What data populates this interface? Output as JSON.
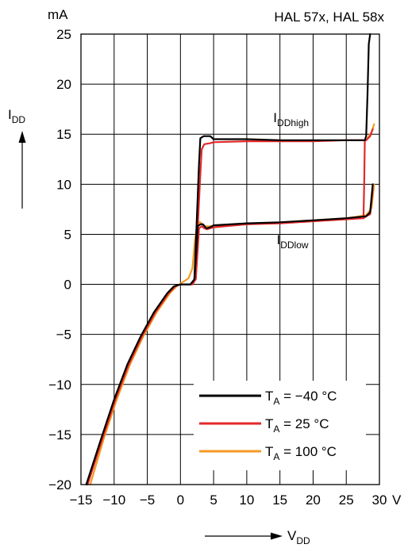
{
  "chart_data": {
    "type": "line",
    "title": "HAL 57x, HAL 58x",
    "xlabel": "V",
    "xlabel_sub": "DD",
    "ylabel": "I",
    "ylabel_sub": "DD",
    "x_unit": "V",
    "y_unit": "mA",
    "xlim": [
      -15,
      30
    ],
    "ylim": [
      -20,
      25
    ],
    "x_ticks": [
      -15,
      -10,
      -5,
      0,
      5,
      10,
      15,
      20,
      25,
      30
    ],
    "x_tick_labels": [
      "−15",
      "−10",
      "−5",
      "0",
      "5",
      "10",
      "15",
      "20",
      "25",
      "30"
    ],
    "y_ticks": [
      -20,
      -15,
      -10,
      -5,
      0,
      5,
      10,
      15,
      20,
      25
    ],
    "y_tick_labels": [
      "−20",
      "−15",
      "−10",
      "−5",
      "0",
      "5",
      "10",
      "15",
      "20",
      "25"
    ],
    "grid": true,
    "legend_position": "bottom-right",
    "annotations": [
      {
        "main": "I",
        "sub": "DDhigh",
        "x": 14,
        "y": 16.2
      },
      {
        "main": "I",
        "sub": "DDlow",
        "x": 14.5,
        "y": 4.0
      }
    ],
    "series": [
      {
        "name_main": "T",
        "name_sub": "A",
        "name_rest": " = −40 °C",
        "color": "#000000",
        "segments": [
          [
            [
              -14.2,
              -20
            ],
            [
              -12,
              -15.5
            ],
            [
              -10,
              -11.5
            ],
            [
              -8,
              -8
            ],
            [
              -6,
              -5.2
            ],
            [
              -4,
              -2.8
            ],
            [
              -2,
              -0.9
            ],
            [
              -1,
              -0.2
            ],
            [
              0,
              0
            ],
            [
              1.5,
              0
            ],
            [
              2.1,
              0.5
            ],
            [
              2.4,
              3.5
            ],
            [
              2.6,
              5.8
            ],
            [
              3,
              6.0
            ],
            [
              3.4,
              6.0
            ],
            [
              3.9,
              5.6
            ],
            [
              4.5,
              5.7
            ],
            [
              5,
              5.9
            ],
            [
              10,
              6.1
            ],
            [
              15,
              6.2
            ],
            [
              20,
              6.4
            ],
            [
              25,
              6.6
            ],
            [
              28,
              6.8
            ],
            [
              28.6,
              7.2
            ],
            [
              29,
              10
            ]
          ],
          [
            [
              2.1,
              0.5
            ],
            [
              2.5,
              7
            ],
            [
              2.8,
              12
            ],
            [
              3,
              14.6
            ],
            [
              3.5,
              14.8
            ],
            [
              4.5,
              14.8
            ],
            [
              5,
              14.5
            ],
            [
              10,
              14.5
            ],
            [
              15,
              14.4
            ],
            [
              20,
              14.4
            ],
            [
              25,
              14.4
            ],
            [
              27.8,
              14.4
            ],
            [
              28,
              14.8
            ],
            [
              28.2,
              19
            ],
            [
              28.4,
              24
            ],
            [
              28.6,
              25
            ]
          ]
        ]
      },
      {
        "name_main": "T",
        "name_sub": "A",
        "name_rest": " = 25 °C",
        "color": "#e2282a",
        "segments": [
          [
            [
              -14,
              -20
            ],
            [
              -11.8,
              -15.5
            ],
            [
              -9.8,
              -11.5
            ],
            [
              -7.8,
              -8
            ],
            [
              -5.8,
              -5.2
            ],
            [
              -3.8,
              -2.8
            ],
            [
              -1.8,
              -0.9
            ],
            [
              -0.8,
              -0.2
            ],
            [
              0,
              0
            ],
            [
              1.8,
              0
            ],
            [
              2.3,
              0.5
            ],
            [
              2.6,
              3.5
            ],
            [
              2.8,
              5.6
            ],
            [
              3.2,
              5.8
            ],
            [
              3.6,
              5.6
            ],
            [
              4,
              5.5
            ],
            [
              5,
              5.7
            ],
            [
              10,
              6.0
            ],
            [
              15,
              6.1
            ],
            [
              20,
              6.3
            ],
            [
              25,
              6.5
            ],
            [
              27.6,
              6.6
            ],
            [
              28,
              6.8
            ],
            [
              28.6,
              7.0
            ],
            [
              29,
              9.5
            ]
          ],
          [
            [
              2.3,
              0.5
            ],
            [
              2.7,
              7
            ],
            [
              3,
              11
            ],
            [
              3.2,
              13.5
            ],
            [
              3.6,
              14
            ],
            [
              4.5,
              14.1
            ],
            [
              5,
              14.2
            ],
            [
              10,
              14.3
            ],
            [
              15,
              14.3
            ],
            [
              20,
              14.3
            ],
            [
              25,
              14.4
            ],
            [
              27.8,
              14.4
            ],
            [
              27.7,
              10
            ],
            [
              27.6,
              6.6
            ]
          ],
          [
            [
              28,
              14.4
            ],
            [
              28.6,
              14.8
            ],
            [
              29,
              15.5
            ]
          ]
        ]
      },
      {
        "name_main": "T",
        "name_sub": "A",
        "name_rest": " = 100 °C",
        "color": "#f59a23",
        "segments": [
          [
            [
              -13.6,
              -20
            ],
            [
              -11.6,
              -15.5
            ],
            [
              -9.6,
              -11.5
            ],
            [
              -7.6,
              -8
            ],
            [
              -5.6,
              -5.2
            ],
            [
              -3.6,
              -2.8
            ],
            [
              -1.6,
              -0.9
            ],
            [
              -0.6,
              -0.2
            ],
            [
              0.3,
              0.2
            ],
            [
              1.2,
              0.6
            ],
            [
              1.8,
              1.6
            ],
            [
              2.2,
              4.5
            ],
            [
              2.6,
              6.2
            ],
            [
              3,
              6.2
            ],
            [
              3.6,
              5.8
            ],
            [
              5,
              5.8
            ],
            [
              10,
              6.0
            ],
            [
              15,
              6.2
            ],
            [
              20,
              6.4
            ],
            [
              25,
              6.6
            ],
            [
              28,
              6.9
            ],
            [
              28.8,
              7.6
            ],
            [
              29.2,
              10
            ]
          ],
          [
            [
              28.2,
              14.6
            ],
            [
              28.8,
              15.2
            ],
            [
              29.2,
              16
            ]
          ]
        ]
      }
    ]
  }
}
